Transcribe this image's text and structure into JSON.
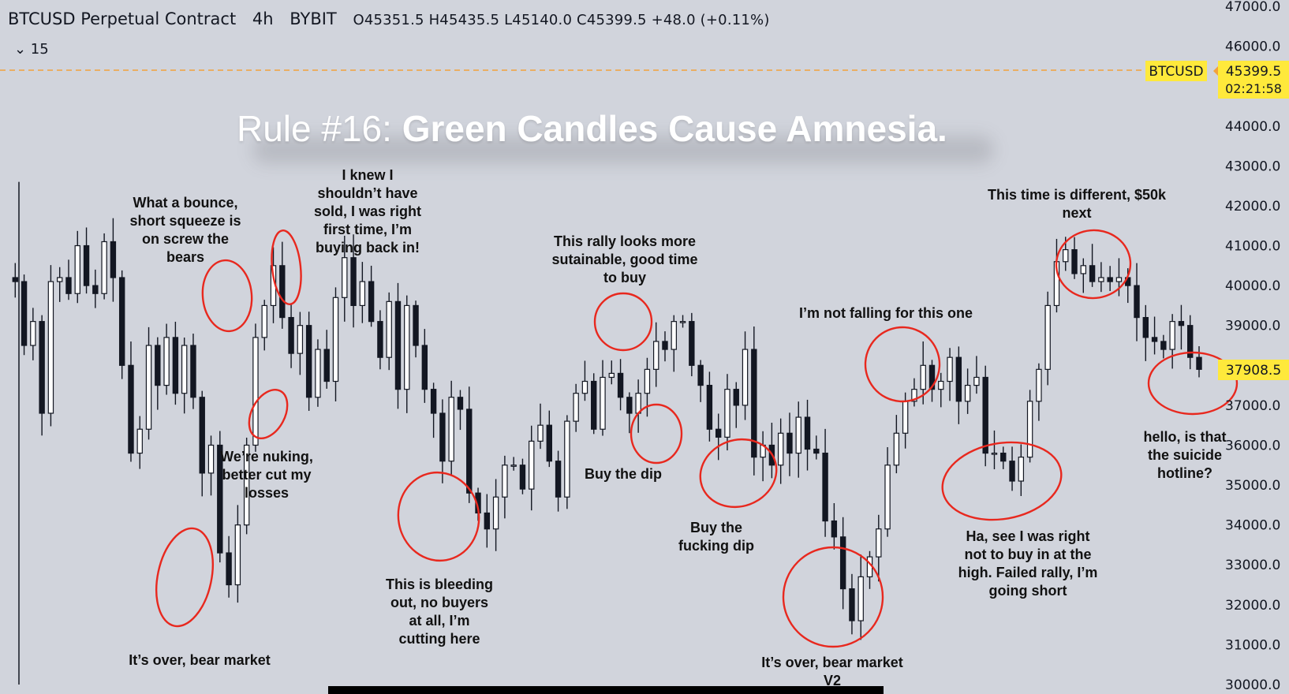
{
  "header": {
    "symbol": "BTCUSD Perpetual Contract",
    "timeframe": "4h",
    "exchange": "BYBIT",
    "ohlc": "O45351.5  H45435.5  L45140.0  C45399.5  +48.0 (+0.11%)",
    "interval_toggle": "⌄ 15"
  },
  "headline": {
    "prefix": "Rule #16: ",
    "bold": "Green Candles Cause Amnesia."
  },
  "price_tags": {
    "symbol_label": "BTCUSD",
    "current_price": "45399.5",
    "countdown": "02:21:58",
    "cursor_price": "37908.5"
  },
  "colors": {
    "background": "#d1d4dc",
    "candle": "#131722",
    "circle": "#e8281e",
    "price_line": "#f2a23c",
    "tag_yellow": "#ffe93b"
  },
  "annotations": [
    "It’s over, bear market",
    "What a bounce,\nshort squeeze is\non screw the\nbears",
    "We’re nuking,\nbetter cut my\nlosses",
    "I knew I\nshouldn’t have\nsold, I was right\nfirst time, I’m\nbuying back in!",
    "This is bleeding\nout, no buyers\nat all, I’m\ncutting here",
    "This rally looks more\nsutainable, good time\nto buy",
    "Buy the dip",
    "Buy the\nfucking dip",
    "It’s over, bear market\nV2",
    "I’m not falling for this one",
    "Ha, see I was right\nnot to buy in at the\nhigh. Failed rally, I’m\ngoing short",
    "This time is different, $50k\nnext",
    "hello, is that\nthe suicide\nhotline?"
  ],
  "chart_data": {
    "type": "candlestick",
    "title": "BTCUSD Perpetual Contract 4h BYBIT",
    "ylim": [
      30000,
      47000
    ],
    "y_ticks": [
      "47000.0",
      "46000.0",
      "45000.0",
      "44000.0",
      "43000.0",
      "42000.0",
      "41000.0",
      "40000.0",
      "39000.0",
      "38000.0",
      "37000.0",
      "36000.0",
      "35000.0",
      "34000.0",
      "33000.0",
      "32000.0",
      "31000.0",
      "30000.0"
    ],
    "path": [
      40200,
      40100,
      38500,
      39100,
      36800,
      40100,
      40200,
      39800,
      41000,
      40000,
      39800,
      41100,
      40200,
      38000,
      35800,
      36400,
      38500,
      37500,
      38700,
      37300,
      38500,
      37200,
      35300,
      36000,
      33300,
      32500,
      34000,
      36000,
      38700,
      39500,
      40500,
      39200,
      38300,
      39000,
      37200,
      38400,
      37600,
      39700,
      40700,
      39500,
      40100,
      39100,
      38200,
      39600,
      37400,
      39500,
      38500,
      37400,
      36800,
      35600,
      37200,
      36900,
      34800,
      34300,
      33900,
      34700,
      35500,
      35500,
      34900,
      36100,
      36500,
      35600,
      34700,
      36600,
      37300,
      37600,
      36400,
      37700,
      37800,
      37200,
      36800,
      37300,
      37900,
      38600,
      38400,
      39100,
      39100,
      38000,
      37500,
      36400,
      36200,
      37400,
      37000,
      38400,
      35700,
      36000,
      35500,
      36300,
      35800,
      36700,
      35900,
      35800,
      34100,
      33700,
      32400,
      31600,
      32700,
      33200,
      33900,
      35500,
      36300,
      37100,
      37400,
      38000,
      37400,
      37600,
      38200,
      37100,
      37500,
      37700,
      35800,
      35800,
      35600,
      35100,
      35700,
      37100,
      37900,
      39500,
      40600,
      40900,
      40300,
      40500,
      40100,
      40200,
      40100,
      40200,
      40000,
      39200,
      38700,
      38600,
      38400,
      39100,
      39000,
      38200,
      37900
    ]
  }
}
